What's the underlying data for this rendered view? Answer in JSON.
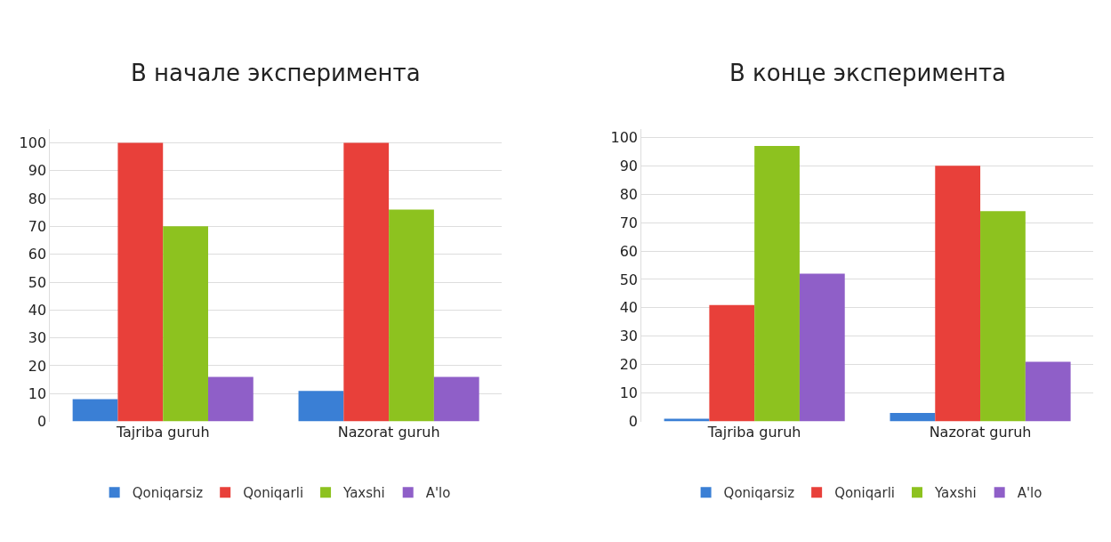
{
  "chart_data": [
    {
      "type": "bar",
      "title": "В начале эксперимента",
      "categories": [
        "Tajriba guruh",
        "Nazorat guruh"
      ],
      "series": [
        {
          "name": "Qoniqarsiz",
          "color": "#3a7fd5",
          "values": [
            8,
            11
          ]
        },
        {
          "name": "Qoniqarli",
          "color": "#e8403a",
          "values": [
            100,
            100
          ]
        },
        {
          "name": "Yaxshi",
          "color": "#8dc21f",
          "values": [
            70,
            76
          ]
        },
        {
          "name": "A'lo",
          "color": "#8f5fc8",
          "values": [
            16,
            16
          ]
        }
      ],
      "ylim": [
        0,
        105
      ],
      "yticks": [
        0,
        10,
        20,
        30,
        40,
        50,
        60,
        70,
        80,
        90,
        100
      ],
      "grid": "y",
      "legend": "bottom"
    },
    {
      "type": "bar",
      "title": "В конце эксперимента",
      "categories": [
        "Tajriba guruh",
        "Nazorat guruh"
      ],
      "series": [
        {
          "name": "Qoniqarsiz",
          "color": "#3a7fd5",
          "values": [
            1,
            3
          ]
        },
        {
          "name": "Qoniqarli",
          "color": "#e8403a",
          "values": [
            41,
            90
          ]
        },
        {
          "name": "Yaxshi",
          "color": "#8dc21f",
          "values": [
            97,
            74
          ]
        },
        {
          "name": "A'lo",
          "color": "#8f5fc8",
          "values": [
            52,
            21
          ]
        }
      ],
      "ylim": [
        0,
        103
      ],
      "yticks": [
        0,
        10,
        20,
        30,
        40,
        50,
        60,
        70,
        80,
        90,
        100
      ],
      "grid": "y",
      "legend": "bottom"
    }
  ]
}
